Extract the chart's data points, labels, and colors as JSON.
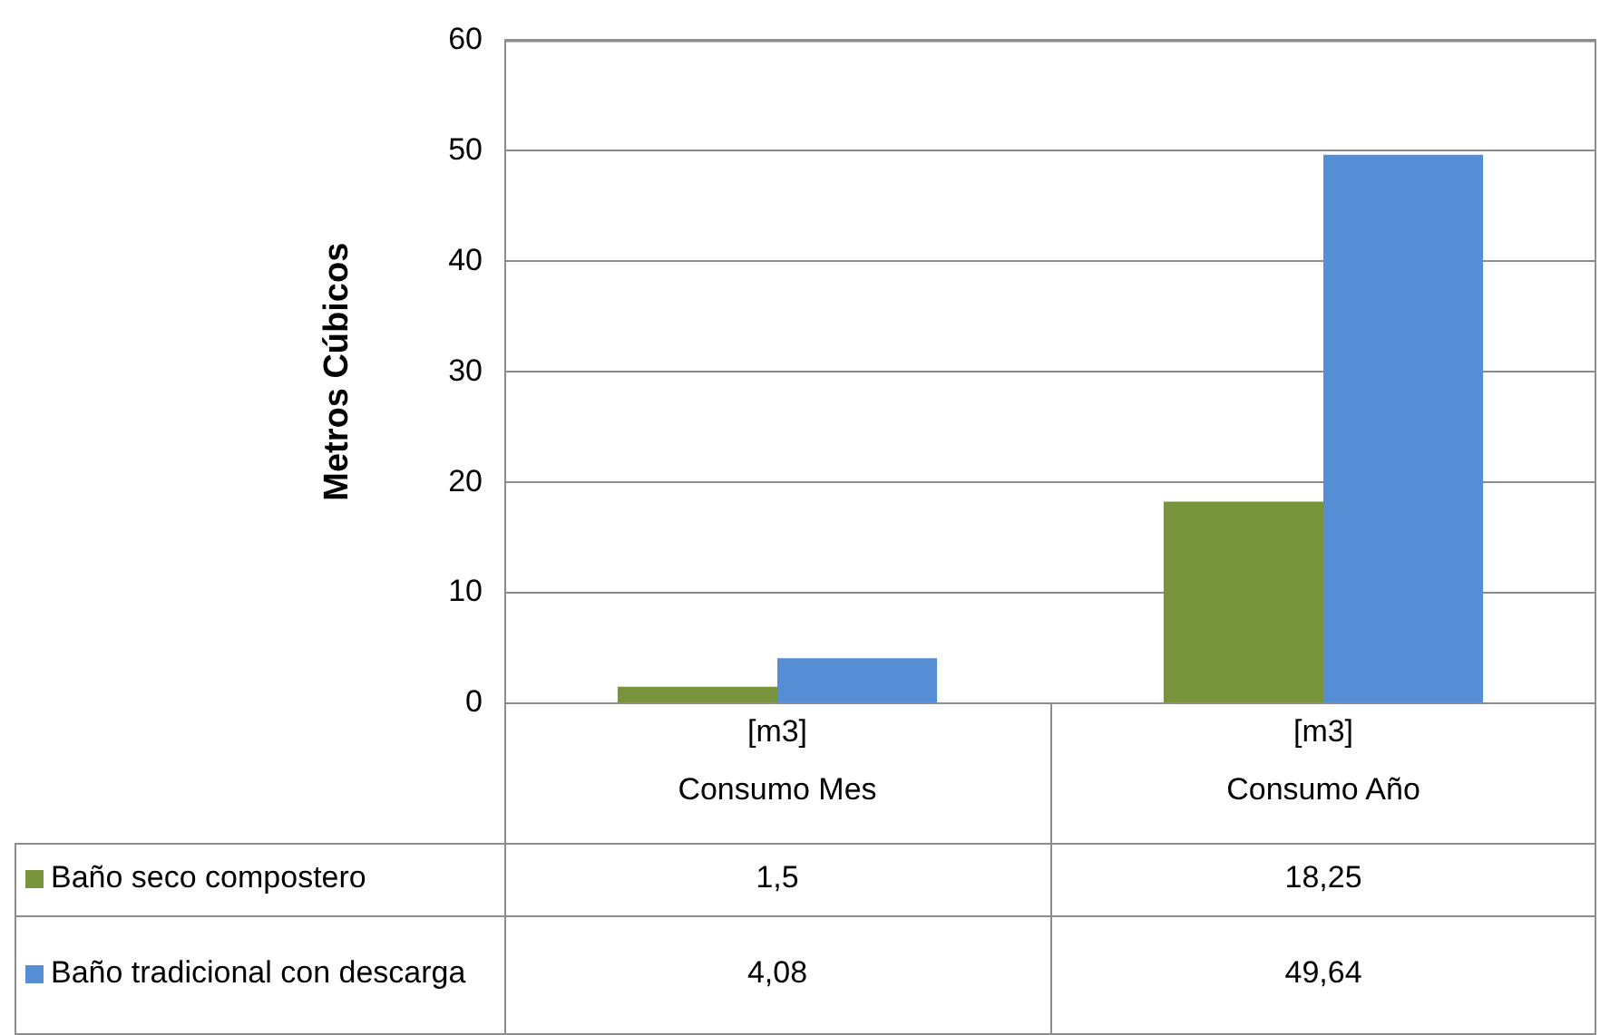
{
  "chart_data": {
    "type": "bar",
    "ylabel": "Metros Cúbicos",
    "categories": [
      "[m3]\nConsumo Mes",
      "[m3]\nConsumo Año"
    ],
    "series": [
      {
        "name": "Baño seco compostero",
        "color": "#77933c",
        "values": [
          1.5,
          18.25
        ],
        "value_labels": [
          "1,5",
          "18,25"
        ]
      },
      {
        "name": "Baño tradicional con descarga",
        "color": "#558ed5",
        "values": [
          4.08,
          49.64
        ],
        "value_labels": [
          "4,08",
          "49,64"
        ]
      }
    ],
    "ylim": [
      0,
      60
    ],
    "yticks": [
      0,
      10,
      20,
      30,
      40,
      50,
      60
    ],
    "grid": "y",
    "legend": "bottom left"
  }
}
